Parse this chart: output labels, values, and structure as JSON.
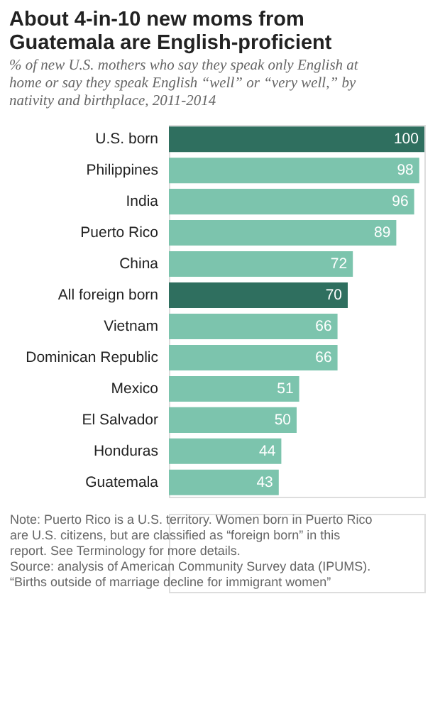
{
  "chart_data": {
    "type": "bar",
    "orientation": "horizontal",
    "title": "About 4-in-10 new moms from Guatemala are English-proficient",
    "subtitle": "% of new U.S. mothers who say they speak only English at home or say they speak English “well” or “very well,” by nativity and birthplace, 2011-2014",
    "categories": [
      "U.S. born",
      "Philippines",
      "India",
      "Puerto Rico",
      "China",
      "All foreign born",
      "Vietnam",
      "Dominican Republic",
      "Mexico",
      "El Salvador",
      "Honduras",
      "Guatemala"
    ],
    "values": [
      100,
      98,
      96,
      89,
      72,
      70,
      66,
      66,
      51,
      50,
      44,
      43
    ],
    "colors": [
      "#2f6f5f",
      "#7cc4ad",
      "#7cc4ad",
      "#7cc4ad",
      "#7cc4ad",
      "#2f6f5f",
      "#7cc4ad",
      "#7cc4ad",
      "#7cc4ad",
      "#7cc4ad",
      "#7cc4ad",
      "#7cc4ad"
    ],
    "data_labels": true,
    "annotations": [
      "Note: Puerto Rico is a U.S. territory. Women born in Puerto Rico are U.S. citizens, but are classified as “foreign born” in this report. See Terminology for more details.",
      "Source: analysis of American Community Survey data (IPUMS).",
      "“Births outside of marriage decline for immigrant women”"
    ]
  }
}
